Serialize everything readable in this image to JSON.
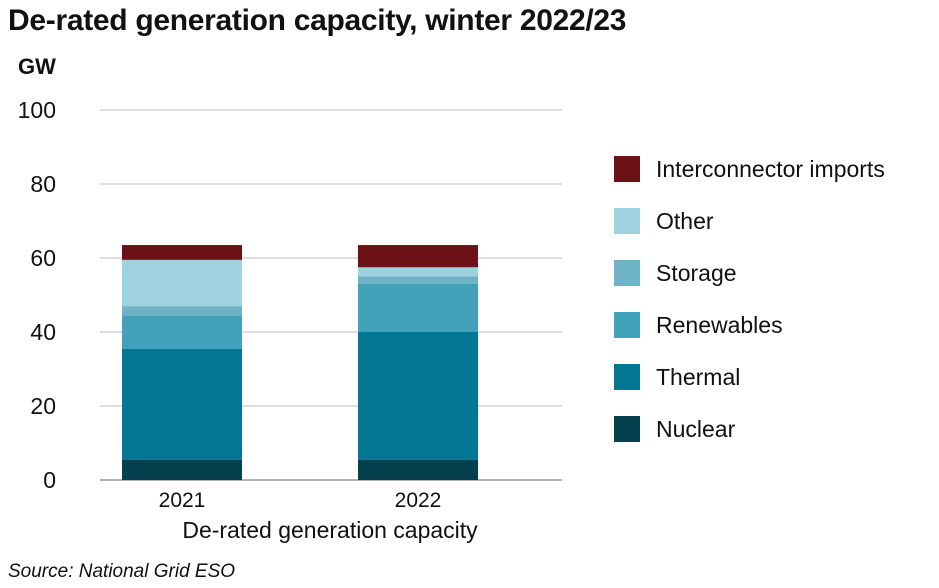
{
  "title": "De-rated generation capacity, winter 2022/23",
  "source": "Source: National Grid ESO",
  "chart_data": {
    "type": "bar",
    "stacked": true,
    "title": "De-rated generation capacity, winter 2022/23",
    "ylabel": "GW",
    "xlabel": "De-rated generation capacity",
    "ylim": [
      0,
      100
    ],
    "yticks": [
      0,
      20,
      40,
      60,
      80,
      100
    ],
    "grid": true,
    "legend_position": "right",
    "categories": [
      "2021",
      "2022"
    ],
    "series": [
      {
        "name": "Nuclear",
        "color": "#05404f",
        "values": [
          5.5,
          5.5
        ]
      },
      {
        "name": "Thermal",
        "color": "#017794",
        "values": [
          30.0,
          34.5
        ]
      },
      {
        "name": "Renewables",
        "color": "#42a2bc",
        "values": [
          9.0,
          13.0
        ]
      },
      {
        "name": "Storage",
        "color": "#6fb4c6",
        "values": [
          2.5,
          2.0
        ]
      },
      {
        "name": "Other",
        "color": "#9fd2df",
        "values": [
          12.5,
          2.5
        ]
      },
      {
        "name": "Interconnector imports",
        "color": "#6c1115",
        "values": [
          4.0,
          6.0
        ]
      }
    ]
  }
}
